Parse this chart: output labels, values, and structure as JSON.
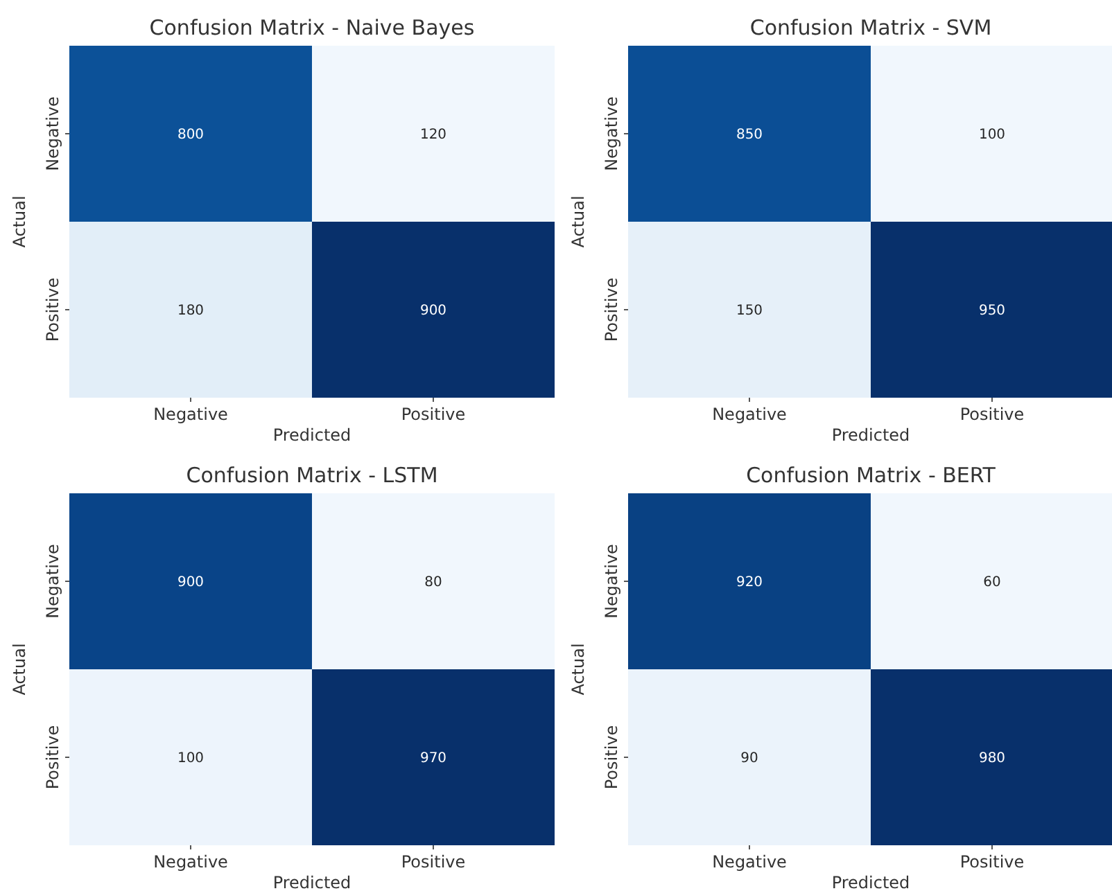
{
  "chart_data": [
    {
      "type": "heatmap",
      "title": "Confusion Matrix - Naive Bayes",
      "xlabel": "Predicted",
      "ylabel": "Actual",
      "categories": [
        "Negative",
        "Positive"
      ],
      "y_categories": [
        "Negative",
        "Positive"
      ],
      "cells": [
        [
          800,
          120
        ],
        [
          180,
          900
        ]
      ],
      "data_labels": true
    },
    {
      "type": "heatmap",
      "title": "Confusion Matrix - SVM",
      "xlabel": "Predicted",
      "ylabel": "Actual",
      "categories": [
        "Negative",
        "Positive"
      ],
      "y_categories": [
        "Negative",
        "Positive"
      ],
      "cells": [
        [
          850,
          100
        ],
        [
          150,
          950
        ]
      ],
      "data_labels": true
    },
    {
      "type": "heatmap",
      "title": "Confusion Matrix - LSTM",
      "xlabel": "Predicted",
      "ylabel": "Actual",
      "categories": [
        "Negative",
        "Positive"
      ],
      "y_categories": [
        "Negative",
        "Positive"
      ],
      "cells": [
        [
          900,
          80
        ],
        [
          100,
          970
        ]
      ],
      "data_labels": true
    },
    {
      "type": "heatmap",
      "title": "Confusion Matrix - BERT",
      "xlabel": "Predicted",
      "ylabel": "Actual",
      "categories": [
        "Negative",
        "Positive"
      ],
      "y_categories": [
        "Negative",
        "Positive"
      ],
      "cells": [
        [
          920,
          60
        ],
        [
          90,
          980
        ]
      ],
      "data_labels": true
    }
  ]
}
